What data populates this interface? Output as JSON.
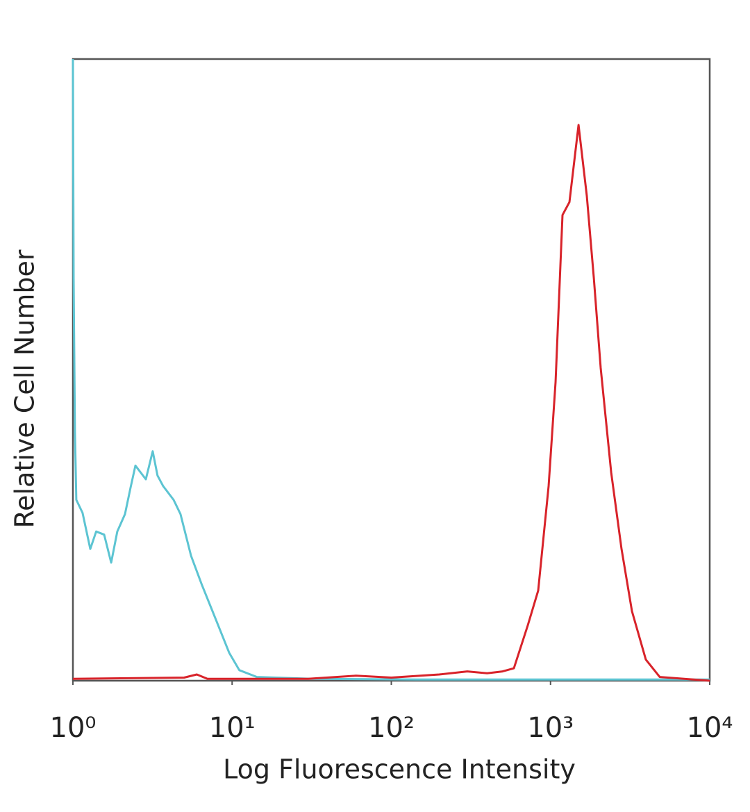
{
  "chart_data": {
    "type": "line",
    "xlabel": "Log Fluorescence Intensity",
    "ylabel": "Relative Cell Number",
    "xscale": "log",
    "xlim": [
      1,
      10000
    ],
    "ylim": [
      0,
      100
    ],
    "xticks": [
      {
        "value": 1,
        "label": "10⁰"
      },
      {
        "value": 10,
        "label": "10¹"
      },
      {
        "value": 100,
        "label": "10²"
      },
      {
        "value": 1000,
        "label": "10³"
      },
      {
        "value": 10000,
        "label": "10⁴"
      }
    ],
    "series": [
      {
        "color": "#5cc4d2",
        "x": [
          1,
          1.01,
          1.03,
          1.05,
          1.15,
          1.285,
          1.4,
          1.571,
          1.74,
          1.9,
          2.125,
          2.3,
          2.47,
          2.87,
          3.17,
          3.4,
          3.69,
          4.29,
          4.74,
          5.52,
          6.42,
          7.83,
          9.58,
          11.1,
          14.3,
          32,
          144,
          1074,
          10000
        ],
        "values": [
          100,
          64.8,
          40,
          29.1,
          27,
          21.2,
          24,
          23.5,
          19,
          24,
          26.8,
          31,
          34.6,
          32.4,
          36.9,
          33,
          31.3,
          29.1,
          26.8,
          20.1,
          15.6,
          10.1,
          4.5,
          1.7,
          0.6,
          0.3,
          0.2,
          0.2,
          0.2
        ]
      },
      {
        "color": "#d8232a",
        "x": [
          1,
          5,
          6,
          7,
          30,
          60,
          100,
          200,
          300,
          400,
          500,
          589,
          720,
          837,
          973,
          1076,
          1189,
          1315,
          1499,
          1690,
          1870,
          2066,
          2404,
          2793,
          3246,
          3970,
          4852,
          10000
        ],
        "values": [
          0.3,
          0.5,
          1,
          0.3,
          0.3,
          0.8,
          0.5,
          1,
          1.5,
          1.2,
          1.5,
          2,
          8.9,
          14.5,
          31.3,
          48,
          74.9,
          77,
          89.4,
          78,
          64.8,
          50.3,
          33.5,
          21.2,
          11.2,
          3.4,
          0.6,
          0
        ]
      }
    ]
  }
}
